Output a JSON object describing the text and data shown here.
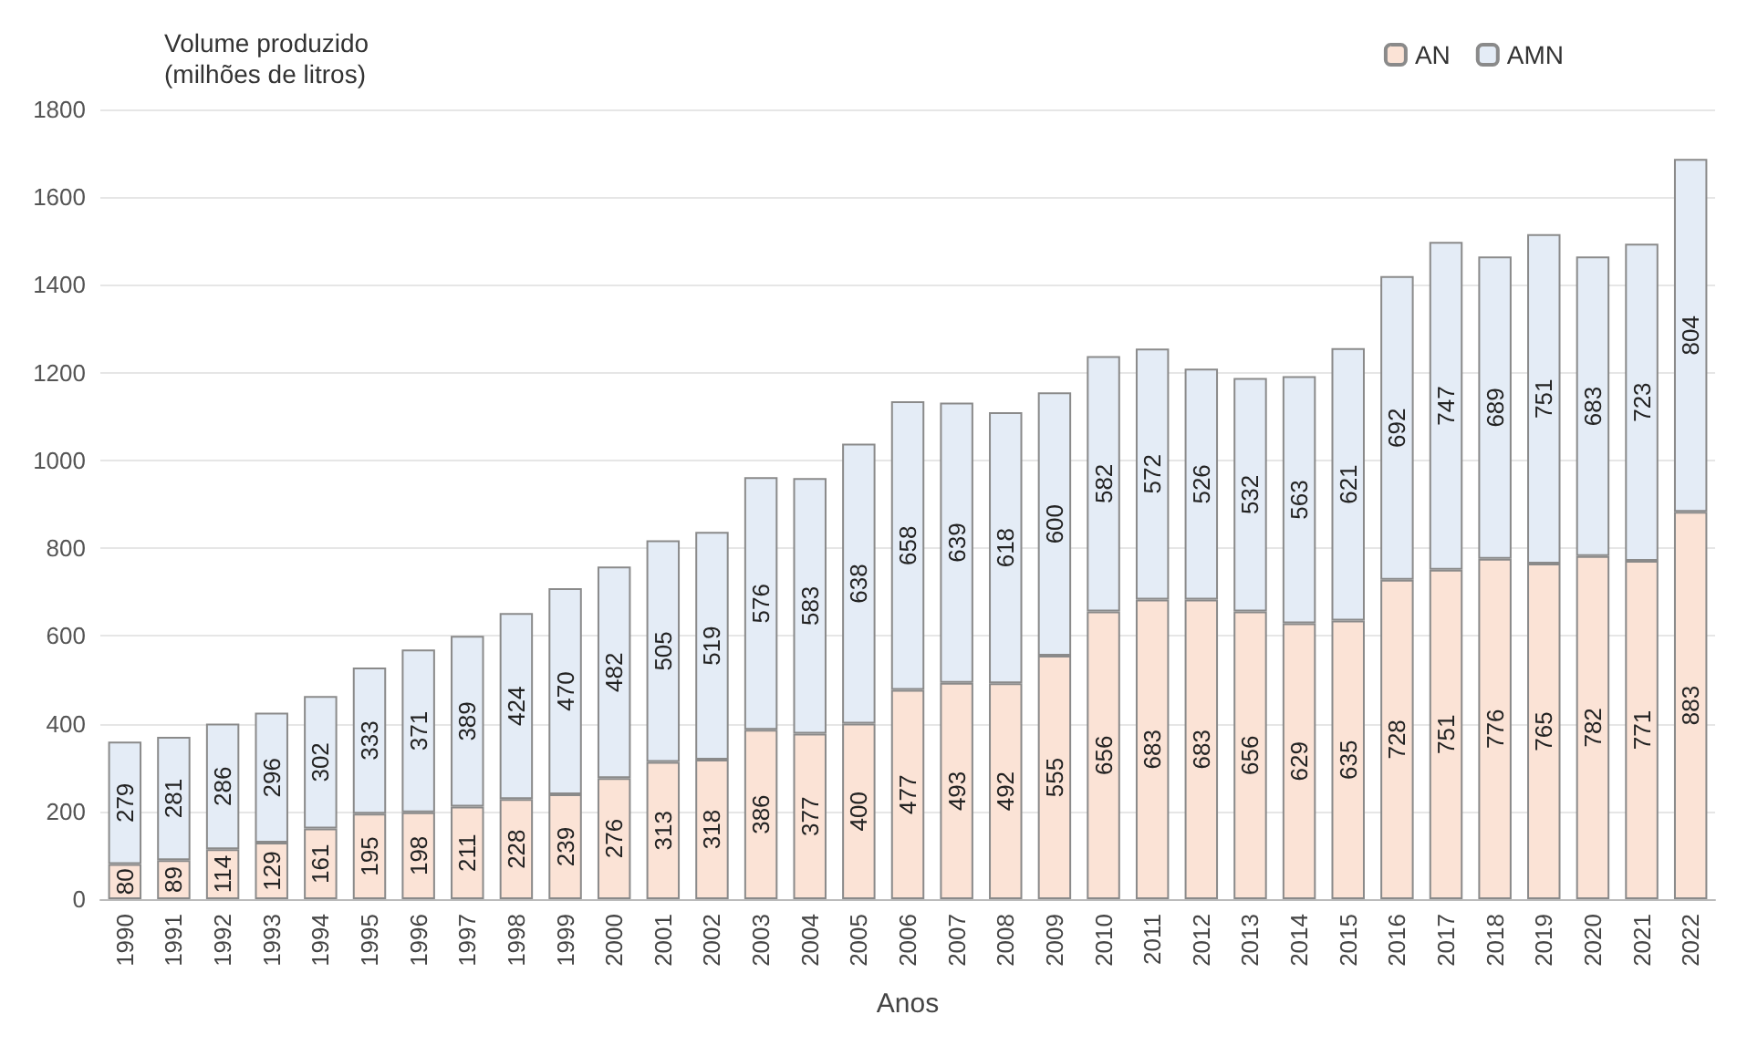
{
  "chart_data": {
    "type": "bar",
    "stacked": true,
    "ylabel": "Volume produzido\n(milhões de litros)",
    "xlabel": "Anos",
    "categories": [
      "1990",
      "1991",
      "1992",
      "1993",
      "1994",
      "1995",
      "1996",
      "1997",
      "1998",
      "1999",
      "2000",
      "2001",
      "2002",
      "2003",
      "2004",
      "2005",
      "2006",
      "2007",
      "2008",
      "2009",
      "2010",
      "2011",
      "2012",
      "2013",
      "2014",
      "2015",
      "2016",
      "2017",
      "2018",
      "2019",
      "2020",
      "2021",
      "2022"
    ],
    "series": [
      {
        "name": "AN",
        "color": "#fbe3d6",
        "values": [
          80,
          89,
          114,
          129,
          161,
          195,
          198,
          211,
          228,
          239,
          276,
          313,
          318,
          386,
          377,
          400,
          477,
          493,
          492,
          555,
          656,
          683,
          683,
          656,
          629,
          635,
          728,
          751,
          776,
          765,
          782,
          771,
          883
        ]
      },
      {
        "name": "AMN",
        "color": "#e4ecf6",
        "values": [
          279,
          281,
          286,
          296,
          302,
          333,
          371,
          389,
          424,
          470,
          482,
          505,
          519,
          576,
          583,
          638,
          658,
          639,
          618,
          600,
          582,
          572,
          526,
          532,
          563,
          621,
          692,
          747,
          689,
          751,
          683,
          723,
          804
        ]
      }
    ],
    "ylim": [
      0,
      1800
    ],
    "yticks": [
      0,
      200,
      400,
      600,
      800,
      1000,
      1200,
      1400,
      1600,
      1800
    ],
    "grid": "y",
    "legend": "top right",
    "data_labels": true
  }
}
